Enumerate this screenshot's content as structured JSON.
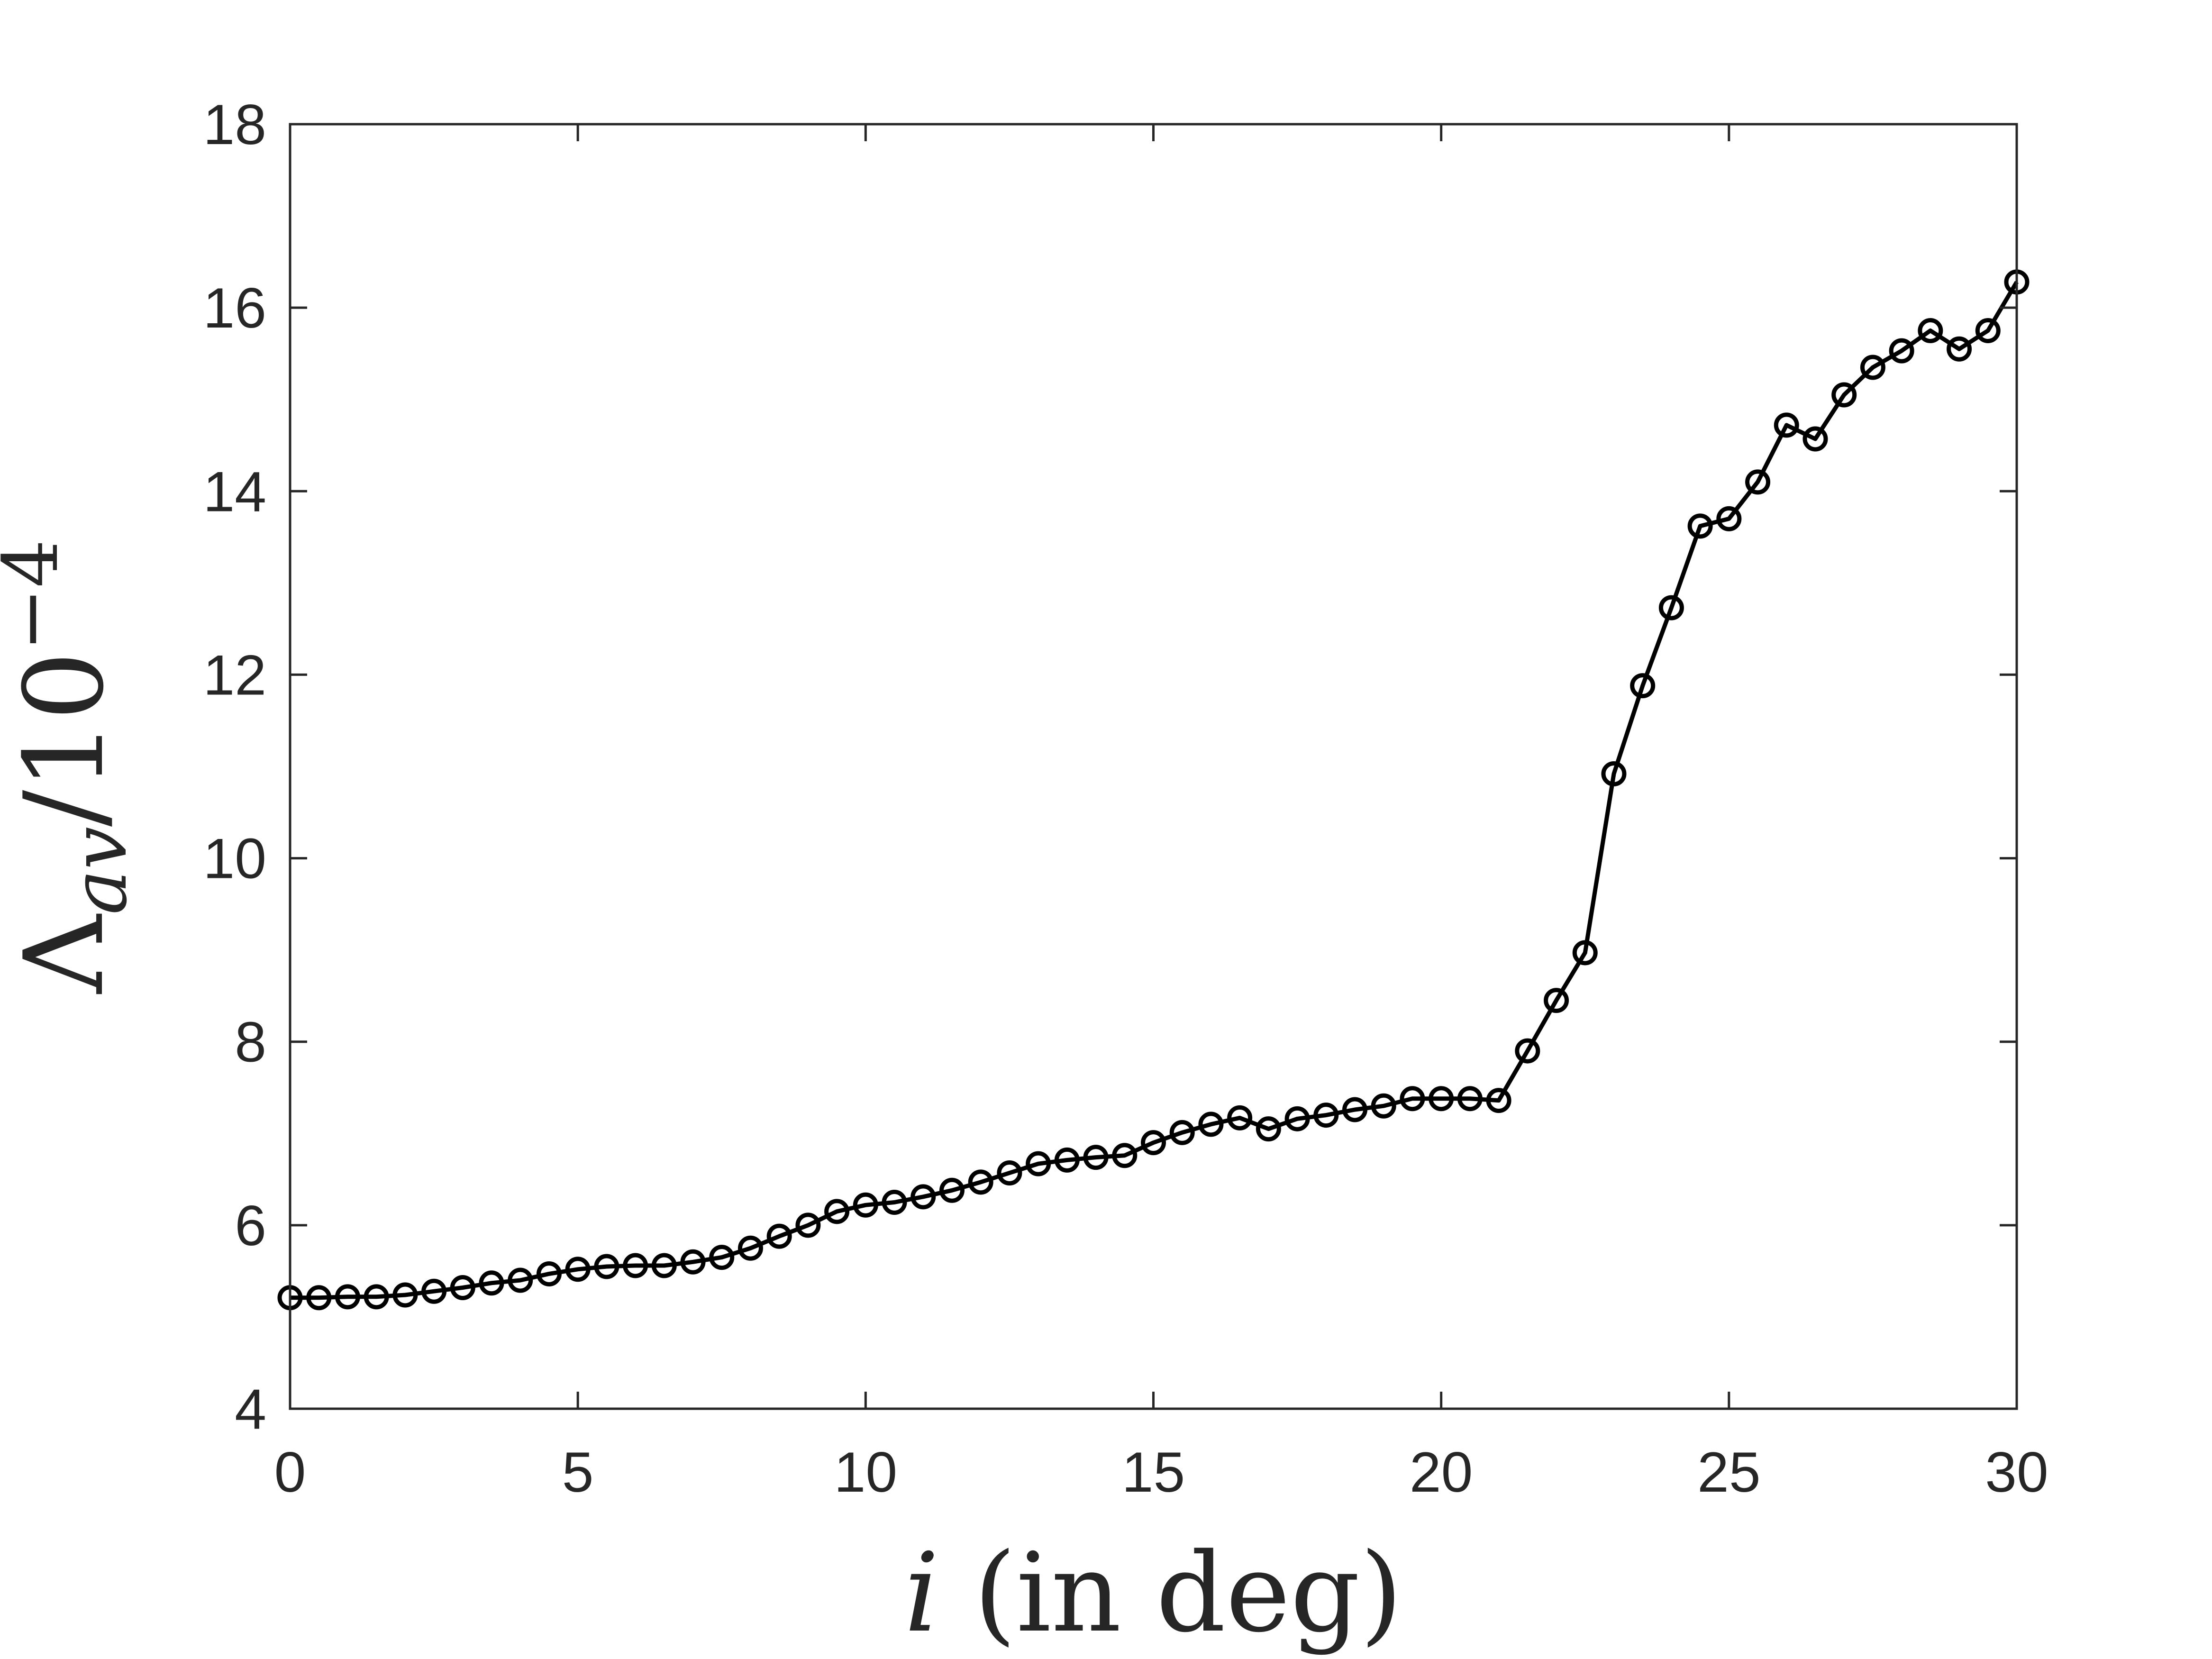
{
  "chart_data": {
    "type": "line",
    "xlabel": "i (in deg)",
    "ylabel": "Λav/10−4",
    "xlim": [
      0,
      30
    ],
    "ylim": [
      4,
      18
    ],
    "xticks": [
      0,
      5,
      10,
      15,
      20,
      25,
      30
    ],
    "yticks": [
      4,
      6,
      8,
      10,
      12,
      14,
      16,
      18
    ],
    "grid": false,
    "marker": "circle",
    "line_color": "#000000",
    "axis_color": "#262626",
    "series": [
      {
        "x": [
          0,
          0.5,
          1,
          1.5,
          2,
          2.5,
          3,
          3.5,
          4,
          4.5,
          5,
          5.5,
          6,
          6.5,
          7,
          7.5,
          8,
          8.5,
          9,
          9.5,
          10,
          10.5,
          11,
          11.5,
          12,
          12.5,
          13,
          13.5,
          14,
          14.5,
          15,
          15.5,
          16,
          16.5,
          17,
          17.5,
          18,
          18.5,
          19,
          19.5,
          20,
          20.5,
          21,
          21.5,
          22,
          22.5,
          23,
          23.5,
          24,
          24.5,
          25,
          25.5,
          26,
          26.5,
          27,
          27.5,
          28,
          28.5,
          29,
          29.5,
          30
        ],
        "y": [
          5.21,
          5.21,
          5.22,
          5.22,
          5.24,
          5.28,
          5.32,
          5.37,
          5.4,
          5.47,
          5.52,
          5.55,
          5.56,
          5.56,
          5.6,
          5.65,
          5.75,
          5.88,
          6.0,
          6.15,
          6.22,
          6.25,
          6.31,
          6.38,
          6.47,
          6.57,
          6.67,
          6.71,
          6.74,
          6.76,
          6.9,
          7.01,
          7.1,
          7.17,
          7.05,
          7.16,
          7.2,
          7.26,
          7.3,
          7.38,
          7.38,
          7.38,
          7.36,
          7.9,
          8.45,
          8.97,
          10.92,
          11.88,
          12.73,
          13.62,
          13.7,
          14.1,
          14.72,
          14.57,
          15.05,
          15.35,
          15.53,
          15.75,
          15.55,
          15.75,
          16.28
        ]
      }
    ]
  }
}
